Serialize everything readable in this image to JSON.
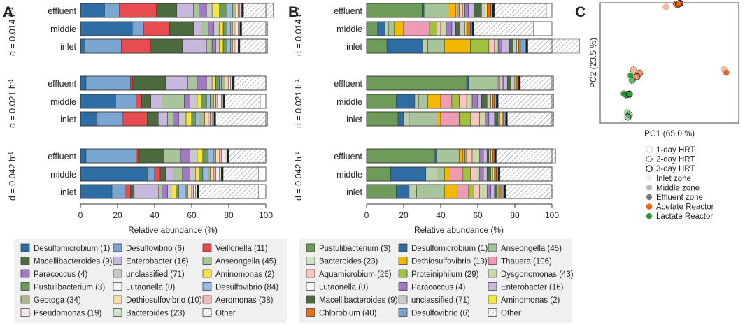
{
  "chart_data": [
    {
      "panel": "A",
      "type": "stacked-bar",
      "orientation": "horizontal",
      "xlabel": "Relative abundance (%)",
      "xlim": [
        0,
        100
      ],
      "xticks": [
        0,
        20,
        40,
        60,
        80,
        100
      ],
      "groups": [
        {
          "label": "d = 0.014 h",
          "sup": "-1"
        },
        {
          "label": "d = 0.021 h",
          "sup": "-1"
        },
        {
          "label": "d = 0.042 h",
          "sup": "-1"
        }
      ],
      "bars": [
        {
          "group": 0,
          "label": "effluent",
          "values": [
            13,
            8,
            20,
            11,
            9,
            3,
            4,
            3,
            4,
            4,
            3,
            2,
            1,
            1,
            1,
            0,
            0,
            1,
            16
          ]
        },
        {
          "group": 0,
          "label": "middle",
          "values": [
            28,
            6,
            14,
            13,
            4,
            4,
            3,
            3,
            2,
            2,
            2,
            1,
            1,
            1,
            1,
            1,
            0,
            1,
            14
          ]
        },
        {
          "group": 0,
          "label": "inlet",
          "values": [
            2,
            20,
            16,
            17,
            13,
            3,
            2,
            2,
            2,
            2,
            2,
            1,
            1,
            1,
            1,
            0,
            0,
            1,
            15
          ]
        },
        {
          "group": 1,
          "label": "effluent",
          "values": [
            3,
            24,
            1,
            18,
            12,
            5,
            5,
            3,
            2,
            2,
            1,
            2,
            1,
            1,
            1,
            1,
            0,
            1,
            17
          ]
        },
        {
          "group": 1,
          "label": "middle",
          "values": [
            19,
            11,
            3,
            5,
            6,
            12,
            3,
            4,
            2,
            3,
            2,
            2,
            1,
            1,
            2,
            1,
            0,
            1,
            19
          ]
        },
        {
          "group": 1,
          "label": "inlet",
          "values": [
            9,
            14,
            13,
            6,
            5,
            3,
            3,
            4,
            3,
            2,
            2,
            3,
            2,
            1,
            1,
            1,
            0,
            1,
            28
          ]
        },
        {
          "group": 2,
          "label": "effluent",
          "values": [
            3,
            27,
            1,
            14,
            0,
            9,
            5,
            4,
            3,
            3,
            3,
            1,
            2,
            1,
            2,
            1,
            0,
            1,
            20
          ]
        },
        {
          "group": 2,
          "label": "middle",
          "values": [
            36,
            4,
            3,
            3,
            4,
            5,
            4,
            3,
            2,
            2,
            3,
            1,
            2,
            1,
            2,
            1,
            0,
            1,
            19
          ]
        },
        {
          "group": 2,
          "label": "inlet",
          "values": [
            17,
            7,
            3,
            2,
            13,
            2,
            3,
            2,
            3,
            1,
            4,
            1,
            2,
            1,
            1,
            1,
            0,
            1,
            32
          ]
        }
      ],
      "legend": [
        {
          "name": "Desulfomicrobium (1)",
          "color": "#2e6da4"
        },
        {
          "name": "Desulfovibrio (6)",
          "color": "#7ba6d1"
        },
        {
          "name": "Veillonella (11)",
          "color": "#e84b50"
        },
        {
          "name": "Macellibacteroides (9)",
          "color": "#4b6b3e"
        },
        {
          "name": "Enterobacter (16)",
          "color": "#c8b8dd"
        },
        {
          "name": "Anseongella (45)",
          "color": "#a8c49a"
        },
        {
          "name": "Paracoccus (4)",
          "color": "#a27ac3"
        },
        {
          "name": "unclassified (71)",
          "color": "#c9c9c9"
        },
        {
          "name": "Aminomonas (2)",
          "color": "#f5e642"
        },
        {
          "name": "Pustulibacterium (3)",
          "color": "#6e9a5a"
        },
        {
          "name": "Lutaonella (0)",
          "color": "#f7f7f7"
        },
        {
          "name": "Desulfovibrio (84)",
          "color": "#9bbbe3"
        },
        {
          "name": "Geotoga (34)",
          "color": "#aeb890"
        },
        {
          "name": "Dethiosulfovibrio (10)",
          "color": "#f8dca0"
        },
        {
          "name": "Aeromonas (38)",
          "color": "#f3b9bf"
        },
        {
          "name": "Pseudomonas (19)",
          "color": "#fbe5ee"
        },
        {
          "name": "Bacteroides (23)",
          "color": "#cfe3c5"
        },
        {
          "name": "Other",
          "color": "hatch"
        }
      ],
      "segment_colors": [
        "#2e6da4",
        "#7ba6d1",
        "#e84b50",
        "#4b6b3e",
        "#c8b8dd",
        "#a8c49a",
        "#a27ac3",
        "#c9c9c9",
        "#f5e642",
        "#6e9a5a",
        "#9bbbe3",
        "#aeb890",
        "#f8dca0",
        "#f3b9bf",
        "#fbe5ee",
        "#cfe3c5",
        "#f7f7f7",
        "#1a1a1a",
        "hatch"
      ]
    },
    {
      "panel": "B",
      "type": "stacked-bar",
      "orientation": "horizontal",
      "xlabel": "Relative abundance (%)",
      "xlim": [
        0,
        100
      ],
      "xticks": [
        0,
        20,
        40,
        60,
        80,
        100
      ],
      "groups": [
        {
          "label": "d = 0.014 h",
          "sup": "-1"
        },
        {
          "label": "d = 0.021 h",
          "sup": "-1"
        },
        {
          "label": "d = 0.042 h",
          "sup": "-1"
        }
      ],
      "bars": [
        {
          "group": 0,
          "label": "effluent",
          "values": [
            30,
            1,
            0,
            13,
            4,
            1,
            1,
            2,
            1,
            2,
            3,
            4,
            2,
            1,
            2,
            1,
            0,
            1,
            28
          ]
        },
        {
          "group": 0,
          "label": "middle",
          "values": [
            6,
            4,
            2,
            3,
            5,
            14,
            4,
            2,
            3,
            3,
            2,
            2,
            3,
            1,
            2,
            1,
            0,
            1,
            32
          ]
        },
        {
          "group": 0,
          "label": "inlet",
          "values": [
            11,
            19,
            3,
            9,
            14,
            0,
            10,
            3,
            2,
            2,
            4,
            2,
            2,
            1,
            1,
            3,
            0,
            1,
            28
          ]
        },
        {
          "group": 1,
          "label": "effluent",
          "values": [
            54,
            1,
            0,
            16,
            0,
            0,
            0,
            1,
            1,
            1,
            2,
            2,
            2,
            1,
            1,
            0,
            0,
            1,
            18
          ]
        },
        {
          "group": 1,
          "label": "middle",
          "values": [
            16,
            10,
            2,
            5,
            7,
            6,
            4,
            4,
            3,
            3,
            2,
            3,
            2,
            1,
            1,
            1,
            0,
            1,
            30
          ]
        },
        {
          "group": 1,
          "label": "inlet",
          "values": [
            17,
            3,
            3,
            15,
            2,
            10,
            6,
            5,
            3,
            2,
            3,
            2,
            1,
            1,
            1,
            1,
            0,
            1,
            25
          ]
        },
        {
          "group": 2,
          "label": "effluent",
          "values": [
            37,
            1,
            0,
            12,
            2,
            1,
            1,
            3,
            4,
            2,
            2,
            1,
            1,
            1,
            1,
            0,
            0,
            1,
            32
          ]
        },
        {
          "group": 2,
          "label": "middle",
          "values": [
            13,
            19,
            6,
            4,
            3,
            7,
            4,
            3,
            2,
            2,
            2,
            2,
            1,
            1,
            1,
            1,
            0,
            1,
            28
          ]
        },
        {
          "group": 2,
          "label": "inlet",
          "values": [
            16,
            7,
            4,
            15,
            7,
            6,
            3,
            3,
            4,
            2,
            2,
            1,
            1,
            1,
            1,
            1,
            0,
            1,
            25
          ]
        }
      ],
      "legend": [
        {
          "name": "Pustulibacterium (3)",
          "color": "#6e9a5a"
        },
        {
          "name": "Desulfomicrobium (1)",
          "color": "#2e6da4"
        },
        {
          "name": "Anseongella (45)",
          "color": "#a8c49a"
        },
        {
          "name": "Bacteroides (23)",
          "color": "#cfe3c5"
        },
        {
          "name": "Dethiosulfovibrio (13)",
          "color": "#f5b800"
        },
        {
          "name": "Thauera (106)",
          "color": "#ee9cb6"
        },
        {
          "name": "Aquamicrobium (26)",
          "color": "#f9c6c0"
        },
        {
          "name": "Proteiniphilum (29)",
          "color": "#a2c23c"
        },
        {
          "name": "Dysgonomonas (43)",
          "color": "#c9d8a6"
        },
        {
          "name": "Lutaonella (0)",
          "color": "#f7f7f7"
        },
        {
          "name": "Paracoccus (4)",
          "color": "#a27ac3"
        },
        {
          "name": "Enterobacter (16)",
          "color": "#c8b8dd"
        },
        {
          "name": "Macellibacteroides (9)",
          "color": "#4b6b3e"
        },
        {
          "name": "unclassified (71)",
          "color": "#c9c9c9"
        },
        {
          "name": "Aminomonas (2)",
          "color": "#f5e642"
        },
        {
          "name": "Chlorobium (40)",
          "color": "#e2711d"
        },
        {
          "name": "Desulfovibrio (6)",
          "color": "#7ba6d1"
        },
        {
          "name": "Other",
          "color": "hatch"
        }
      ],
      "segment_colors": [
        "#6e9a5a",
        "#2e6da4",
        "#bcd0a8",
        "#a8c49a",
        "#f5b800",
        "#ee9cb6",
        "#a2c23c",
        "#f9c6c0",
        "#c9d8a6",
        "#a27ac3",
        "#c8b8dd",
        "#4b6b3e",
        "#c9c9c9",
        "#f5e642",
        "#e2711d",
        "#7ba6d1",
        "#f7f7f7",
        "#1a1a1a",
        "hatch"
      ]
    },
    {
      "panel": "C",
      "type": "scatter",
      "xlabel": "PC1 (65.0 %)",
      "ylabel": "PC2 (23.5 %)",
      "xlim": [
        -1,
        1
      ],
      "ylim": [
        -1,
        1
      ],
      "grid": false,
      "points": [
        {
          "x": -0.05,
          "y": 0.93,
          "hrt": 1,
          "zone": "inlet",
          "reactor": "acetate"
        },
        {
          "x": 0.1,
          "y": 0.97,
          "hrt": 2,
          "zone": "middle",
          "reactor": "acetate"
        },
        {
          "x": 0.15,
          "y": 0.99,
          "hrt": 3,
          "zone": "effluent",
          "reactor": "acetate"
        },
        {
          "x": 0.13,
          "y": 0.98,
          "hrt": 3,
          "zone": "middle",
          "reactor": "acetate"
        },
        {
          "x": 0.79,
          "y": -0.11,
          "hrt": 1,
          "zone": "inlet",
          "reactor": "acetate"
        },
        {
          "x": 0.82,
          "y": -0.16,
          "hrt": 1,
          "zone": "effluent",
          "reactor": "acetate"
        },
        {
          "x": -0.52,
          "y": -0.12,
          "hrt": 2,
          "zone": "inlet",
          "reactor": "acetate"
        },
        {
          "x": -0.43,
          "y": -0.17,
          "hrt": 2,
          "zone": "middle",
          "reactor": "acetate"
        },
        {
          "x": -0.47,
          "y": -0.23,
          "hrt": 3,
          "zone": "middle",
          "reactor": "acetate"
        },
        {
          "x": -0.56,
          "y": -0.21,
          "hrt": 1,
          "zone": "effluent",
          "reactor": "lactate"
        },
        {
          "x": -0.54,
          "y": -0.29,
          "hrt": 2,
          "zone": "middle",
          "reactor": "lactate"
        },
        {
          "x": -0.66,
          "y": -0.51,
          "hrt": 1,
          "zone": "effluent",
          "reactor": "lactate"
        },
        {
          "x": -0.62,
          "y": -0.53,
          "hrt": 2,
          "zone": "effluent",
          "reactor": "lactate"
        },
        {
          "x": -0.58,
          "y": -0.52,
          "hrt": 3,
          "zone": "effluent",
          "reactor": "lactate"
        },
        {
          "x": -0.61,
          "y": -0.82,
          "hrt": 1,
          "zone": "inlet",
          "reactor": "lactate"
        },
        {
          "x": -0.58,
          "y": -0.86,
          "hrt": 2,
          "zone": "inlet",
          "reactor": "lactate"
        },
        {
          "x": -0.6,
          "y": -0.9,
          "hrt": 3,
          "zone": "inlet",
          "reactor": "lactate"
        }
      ],
      "legend": [
        {
          "name": "1-day HRT",
          "kind": "hrt1"
        },
        {
          "name": "2-day HRT",
          "kind": "hrt2"
        },
        {
          "name": "3-day HRT",
          "kind": "hrt3"
        },
        {
          "name": "Inlet zone",
          "kind": "inlet"
        },
        {
          "name": "Middle zone",
          "kind": "middle"
        },
        {
          "name": "Effluent zone",
          "kind": "effluent"
        },
        {
          "name": "Acetate Reactor",
          "kind": "acetate"
        },
        {
          "name": "Lactate Reactor",
          "kind": "lactate"
        }
      ],
      "reactor_colors": {
        "acetate": "#e8671f",
        "lactate": "#2e9a3a"
      }
    }
  ],
  "panel_labels": [
    "A",
    "B",
    "C"
  ]
}
